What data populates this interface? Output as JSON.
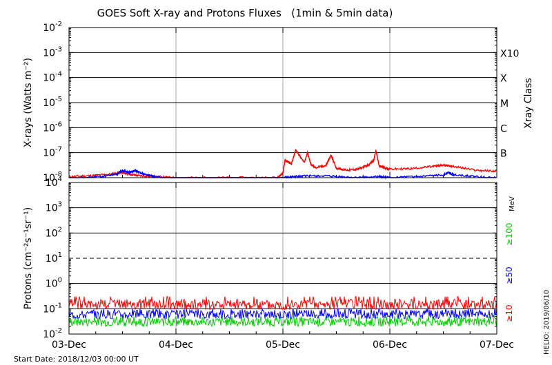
{
  "title": "GOES Soft X-ray and Protons Fluxes   (1min & 5min data)",
  "footer_left": "Start Date: 2018/12/03 00:00 UT",
  "footer_right": "HELIO: 2019/06/10",
  "x_axis": {
    "tick_labels": [
      "03-Dec",
      "04-Dec",
      "05-Dec",
      "06-Dec",
      "07-Dec"
    ],
    "range_days": [
      0,
      4
    ]
  },
  "chart_data": [
    {
      "type": "line",
      "name": "xray",
      "ylabel": "X-rays (Watts m⁻²)",
      "yscale": "log",
      "ylim": [
        1e-08,
        0.01
      ],
      "y_tick_exponents": [
        -2,
        -3,
        -4,
        -5,
        -6,
        -7,
        -8
      ],
      "class_axis_label": "Xray Class",
      "class_labels": [
        {
          "label": "X10",
          "level": 0.001
        },
        {
          "label": "X",
          "level": 0.0001
        },
        {
          "label": "M",
          "level": 1e-05
        },
        {
          "label": "C",
          "level": 1e-06
        },
        {
          "label": "B",
          "level": 1e-07
        }
      ],
      "grid": true,
      "series": [
        {
          "color": "#ff0000",
          "days": [
            0,
            0.2,
            0.4,
            0.5,
            0.55,
            0.65,
            0.8,
            1.0,
            1.4,
            1.8,
            1.95,
            2.0,
            2.02,
            2.08,
            2.12,
            2.2,
            2.23,
            2.26,
            2.3,
            2.4,
            2.45,
            2.5,
            2.6,
            2.7,
            2.8,
            2.85,
            2.87,
            2.9,
            2.95,
            3.0,
            3.2,
            3.4,
            3.5,
            3.6,
            3.8,
            4.0
          ],
          "values": [
            1.1e-08,
            1.2e-08,
            1.4e-08,
            1.6e-08,
            1.4e-08,
            1.2e-08,
            1.1e-08,
            1e-08,
            1e-08,
            1e-08,
            1e-08,
            1.5e-08,
            5e-08,
            3.5e-08,
            1.3e-07,
            4e-08,
            1e-07,
            3.5e-08,
            2.5e-08,
            3e-08,
            8e-08,
            2.4e-08,
            2e-08,
            2.2e-08,
            3.2e-08,
            5e-08,
            1.2e-07,
            3e-08,
            2.5e-08,
            2.2e-08,
            2.3e-08,
            2.8e-08,
            3.2e-08,
            2.8e-08,
            2e-08,
            1.8e-08
          ]
        },
        {
          "color": "#0000ff",
          "days": [
            0,
            0.3,
            0.45,
            0.5,
            0.55,
            0.62,
            0.7,
            0.8,
            1.0,
            1.5,
            2.0,
            2.1,
            2.3,
            2.5,
            2.7,
            2.9,
            3.0,
            3.3,
            3.5,
            3.55,
            3.6,
            3.8,
            4.0
          ],
          "values": [
            9e-09,
            1.1e-08,
            1.4e-08,
            2e-08,
            1.6e-08,
            1.9e-08,
            1.4e-08,
            1.1e-08,
            9e-09,
            9e-09,
            1e-08,
            1.1e-08,
            1.2e-08,
            1.1e-08,
            1e-08,
            1.1e-08,
            1e-08,
            1.1e-08,
            1.3e-08,
            1.6e-08,
            1.3e-08,
            1.1e-08,
            1e-08
          ]
        }
      ]
    },
    {
      "type": "line",
      "name": "protons",
      "ylabel": "Protons (cm⁻²s⁻¹sr⁻¹)",
      "yscale": "log",
      "ylim": [
        0.01,
        10000
      ],
      "y_tick_exponents": [
        4,
        3,
        2,
        1,
        0,
        -1,
        -2
      ],
      "threshold": {
        "value": 10,
        "style": "dashed"
      },
      "energy_unit": "MeV",
      "grid": true,
      "series": [
        {
          "name": "≥100",
          "color": "#00cc00",
          "typical": 0.03,
          "low": 0.02,
          "high": 0.05
        },
        {
          "name": "≥50",
          "color": "#0000ff",
          "typical": 0.06,
          "low": 0.04,
          "high": 0.1
        },
        {
          "name": "≥10",
          "color": "#ff0000",
          "typical": 0.15,
          "low": 0.1,
          "high": 0.3
        }
      ]
    }
  ]
}
